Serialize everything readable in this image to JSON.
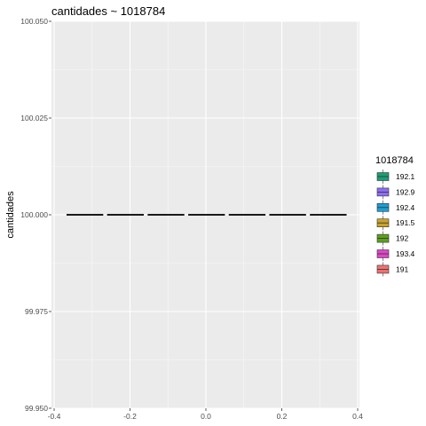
{
  "chart_data": {
    "type": "box",
    "title": "cantidades ~ 1018784",
    "xlabel": "",
    "ylabel": "cantidades",
    "xlim": [
      -0.4,
      0.4
    ],
    "ylim": [
      99.95,
      100.05
    ],
    "x_ticks": [
      "-0.4",
      "-0.2",
      "0.0",
      "0.2",
      "0.4"
    ],
    "y_ticks": [
      "99.950",
      "99.975",
      "100.000",
      "100.025",
      "100.050"
    ],
    "legend_title": "1018784",
    "legend_position": "right",
    "grid": true,
    "series": [
      {
        "name": "192.1",
        "color": "#1b9e77",
        "x_start": -0.3673,
        "x_end": -0.2706,
        "value": 100.0
      },
      {
        "name": "192.9",
        "color": "#8c6ef2",
        "x_start": -0.2604,
        "x_end": -0.1637,
        "value": 100.0
      },
      {
        "name": "192.4",
        "color": "#1a9fd6",
        "x_start": -0.1535,
        "x_end": -0.0568,
        "value": 100.0
      },
      {
        "name": "191.5",
        "color": "#c9a227",
        "x_start": -0.0466,
        "x_end": 0.0501,
        "value": 100.0
      },
      {
        "name": "192",
        "color": "#5ea01f",
        "x_start": 0.0603,
        "x_end": 0.157,
        "value": 100.0
      },
      {
        "name": "193.4",
        "color": "#e046c8",
        "x_start": 0.1672,
        "x_end": 0.2639,
        "value": 100.0
      },
      {
        "name": "191",
        "color": "#f07070",
        "x_start": 0.2741,
        "x_end": 0.3708,
        "value": 100.0
      }
    ]
  }
}
